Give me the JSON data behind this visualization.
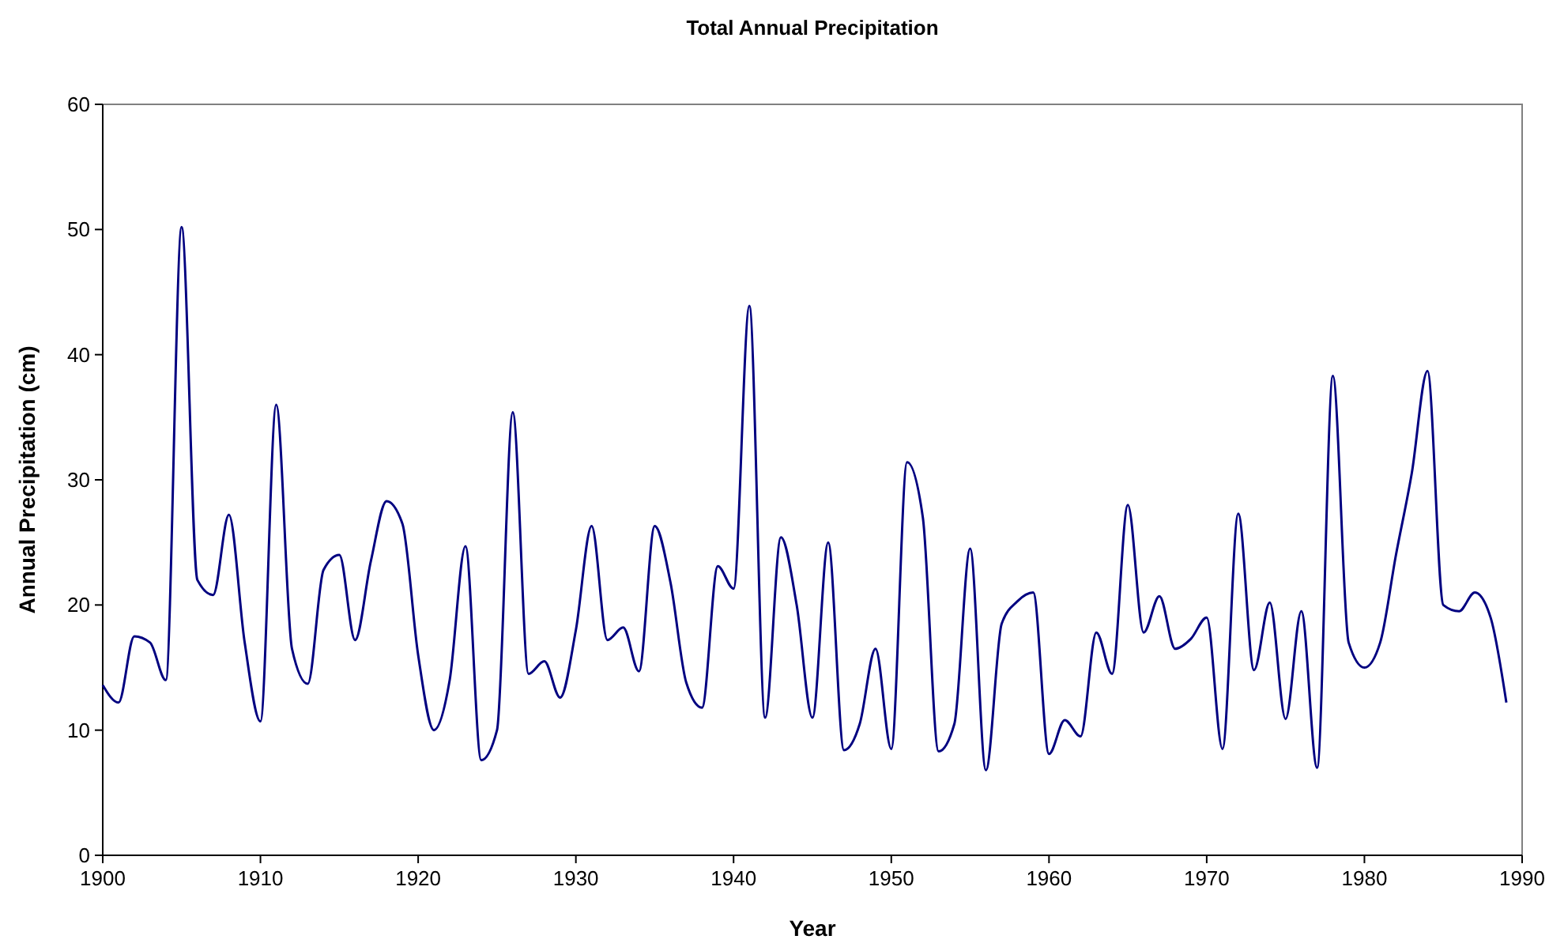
{
  "chart_data": {
    "type": "line",
    "title": "Total Annual Precipitation",
    "xlabel": "Year",
    "ylabel": "Annual Precipitation (cm)",
    "x": [
      1900,
      1901,
      1902,
      1903,
      1904,
      1905,
      1906,
      1907,
      1908,
      1909,
      1910,
      1911,
      1912,
      1913,
      1914,
      1915,
      1916,
      1917,
      1918,
      1919,
      1920,
      1921,
      1922,
      1923,
      1924,
      1925,
      1926,
      1927,
      1928,
      1929,
      1930,
      1931,
      1932,
      1933,
      1934,
      1935,
      1936,
      1937,
      1938,
      1939,
      1940,
      1941,
      1942,
      1943,
      1944,
      1945,
      1946,
      1947,
      1948,
      1949,
      1950,
      1951,
      1952,
      1953,
      1954,
      1955,
      1956,
      1957,
      1958,
      1959,
      1960,
      1961,
      1962,
      1963,
      1964,
      1965,
      1966,
      1967,
      1968,
      1969,
      1970,
      1971,
      1972,
      1973,
      1974,
      1975,
      1976,
      1977,
      1978,
      1979,
      1980,
      1981,
      1982,
      1983,
      1984,
      1985,
      1986,
      1987,
      1988,
      1989
    ],
    "series": [
      {
        "color": "#000080",
        "values": [
          13.6,
          12.2,
          17.5,
          17,
          14,
          50.2,
          22,
          20.8,
          27.2,
          17,
          10.7,
          36,
          16.5,
          13.7,
          22.8,
          24,
          17.2,
          23.5,
          28.3,
          26.5,
          16,
          10,
          14,
          24.7,
          7.6,
          10,
          35.4,
          14.5,
          15.5,
          12.6,
          18,
          26.3,
          17.2,
          18.2,
          14.7,
          26.3,
          21.8,
          13.8,
          11.8,
          23.1,
          21.3,
          43.9,
          11,
          25.4,
          20,
          11,
          25,
          8.4,
          10.5,
          16.5,
          8.5,
          31.4,
          27,
          8.3,
          10.5,
          24.5,
          6.8,
          18.5,
          20.3,
          21,
          8.1,
          10.8,
          9.5,
          17.8,
          14.5,
          28,
          17.8,
          20.7,
          16.5,
          17.3,
          19,
          8.5,
          27.3,
          14.8,
          20.2,
          10.9,
          19.5,
          7,
          38.3,
          17,
          15,
          17,
          24,
          30.5,
          38.7,
          20,
          19.5,
          21,
          19,
          12.2
        ]
      }
    ],
    "xlim": [
      1900,
      1990
    ],
    "xticks": [
      1900,
      1910,
      1920,
      1930,
      1940,
      1950,
      1960,
      1970,
      1980,
      1990
    ],
    "ylim": [
      0,
      60
    ],
    "yticks": [
      0,
      10,
      20,
      30,
      40,
      50,
      60
    ],
    "grid": false,
    "marker": "none",
    "line_style": "solid"
  }
}
